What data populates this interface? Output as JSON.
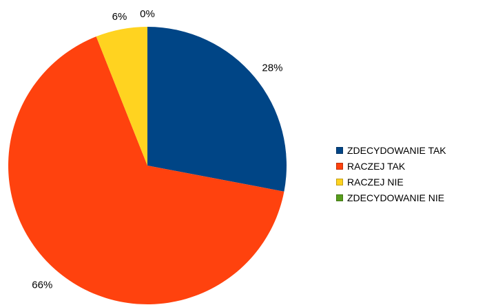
{
  "chart_data": {
    "type": "pie",
    "title": "",
    "labels": [
      "ZDECYDOWANIE TAK",
      "RACZEJ TAK",
      "RACZEJ NIE",
      "ZDECYDOWANIE NIE"
    ],
    "values": [
      28,
      66,
      6,
      0
    ],
    "data_labels": [
      "28%",
      "66%",
      "6%",
      "0%"
    ],
    "colors": [
      "#004586",
      "#ff420e",
      "#ffd320",
      "#579d1c"
    ],
    "start_angle": "12 o'clock",
    "direction": "clockwise",
    "legend_position": "right"
  }
}
